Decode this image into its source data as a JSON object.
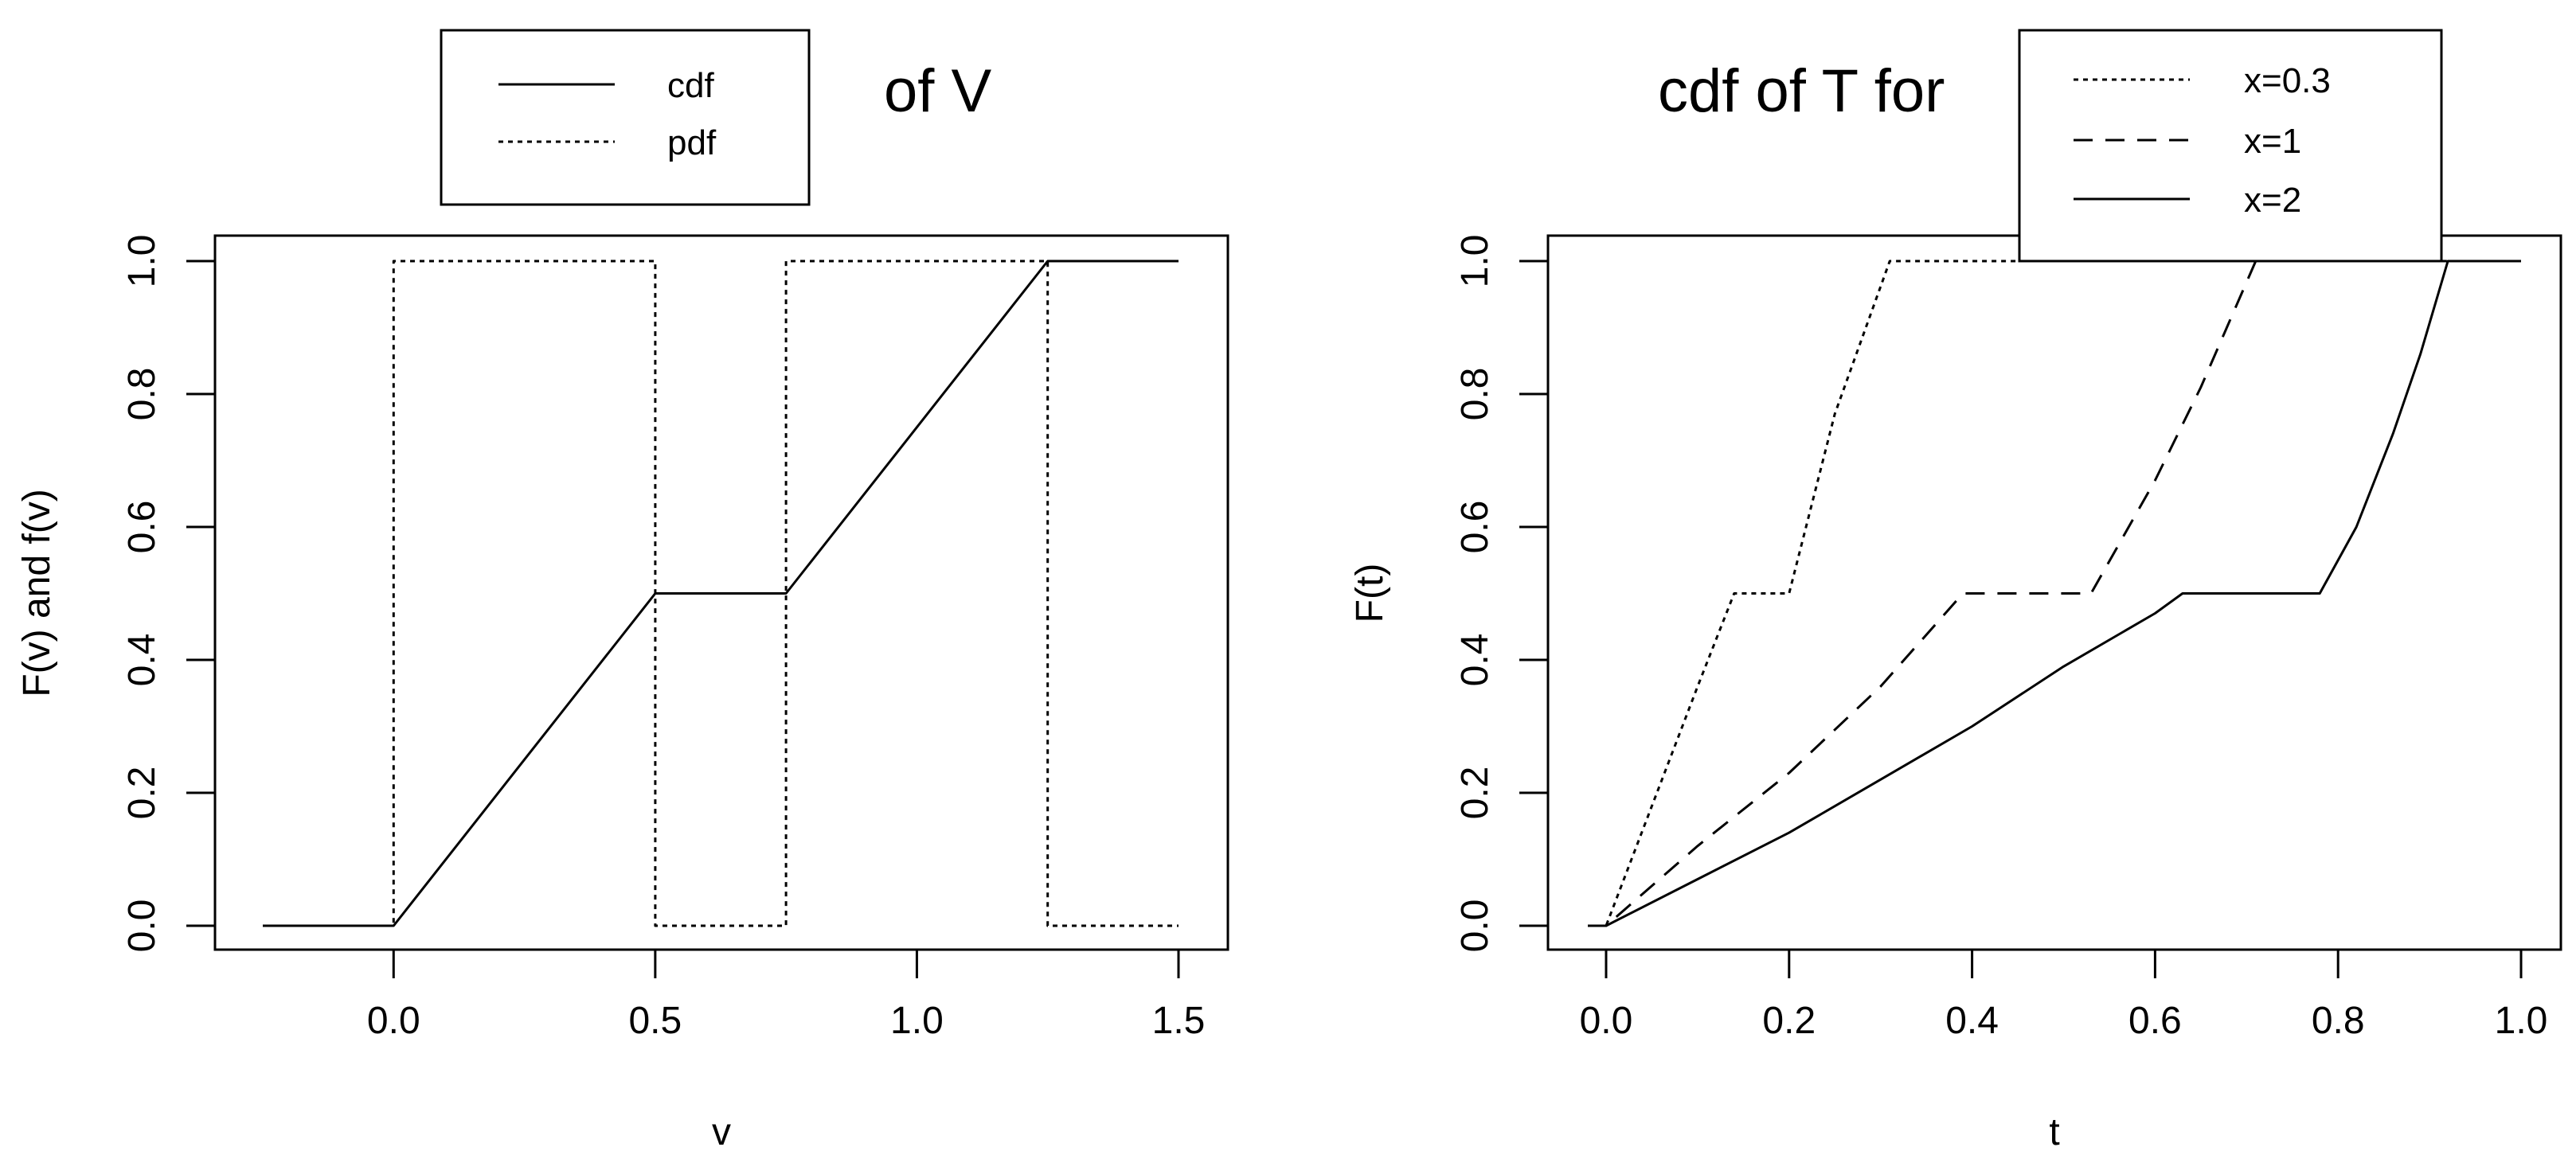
{
  "chart_data": [
    {
      "type": "line",
      "title": "of V",
      "xlabel": "v",
      "ylabel": "F(v) and f(v)",
      "xlim": [
        -0.25,
        1.5
      ],
      "ylim": [
        0,
        1
      ],
      "xticks": [
        "0.0",
        "0.5",
        "1.0",
        "1.5"
      ],
      "yticks": [
        "0.0",
        "0.2",
        "0.4",
        "0.6",
        "0.8",
        "1.0"
      ],
      "legend_position": "top-left, outside plot area",
      "series": [
        {
          "name": "cdf",
          "style": "solid",
          "x": [
            -0.25,
            0,
            0.5,
            0.75,
            1.25,
            1.5
          ],
          "values": [
            0,
            0,
            0.5,
            0.5,
            1,
            1
          ]
        },
        {
          "name": "pdf",
          "style": "dotted",
          "x": [
            -0.25,
            0,
            0,
            0.5,
            0.5,
            0.75,
            0.75,
            1.25,
            1.25,
            1.5
          ],
          "values": [
            0,
            0,
            1,
            1,
            0,
            0,
            1,
            1,
            0,
            0
          ]
        }
      ]
    },
    {
      "type": "line",
      "title": "cdf of T for",
      "xlabel": "t",
      "ylabel": "F(t)",
      "xlim": [
        -0.02,
        1.0
      ],
      "ylim": [
        0,
        1
      ],
      "xticks": [
        "0.0",
        "0.2",
        "0.4",
        "0.6",
        "0.8",
        "1.0"
      ],
      "yticks": [
        "0.0",
        "0.2",
        "0.4",
        "0.6",
        "0.8",
        "1.0"
      ],
      "legend_position": "top-right, overlapping plot top",
      "series": [
        {
          "name": "x=0.3",
          "style": "dotted",
          "x": [
            -0.02,
            0.0,
            0.05,
            0.1,
            0.14,
            0.2,
            0.25,
            0.31,
            1.0
          ],
          "values": [
            0,
            0,
            0.18,
            0.36,
            0.5,
            0.5,
            0.77,
            1.0,
            1.0
          ]
        },
        {
          "name": "x=1",
          "style": "dashed",
          "x": [
            -0.02,
            0.0,
            0.1,
            0.2,
            0.3,
            0.39,
            0.53,
            0.6,
            0.65,
            0.71,
            1.0
          ],
          "values": [
            0,
            0,
            0.12,
            0.23,
            0.36,
            0.5,
            0.5,
            0.67,
            0.81,
            1.0,
            1.0
          ]
        },
        {
          "name": "x=2",
          "style": "solid",
          "x": [
            -0.02,
            0.0,
            0.1,
            0.2,
            0.3,
            0.4,
            0.5,
            0.6,
            0.63,
            0.78,
            0.82,
            0.86,
            0.89,
            0.92,
            1.0
          ],
          "values": [
            0,
            0,
            0.07,
            0.14,
            0.22,
            0.3,
            0.39,
            0.47,
            0.5,
            0.5,
            0.6,
            0.74,
            0.86,
            1.0,
            1.0
          ]
        }
      ]
    }
  ]
}
